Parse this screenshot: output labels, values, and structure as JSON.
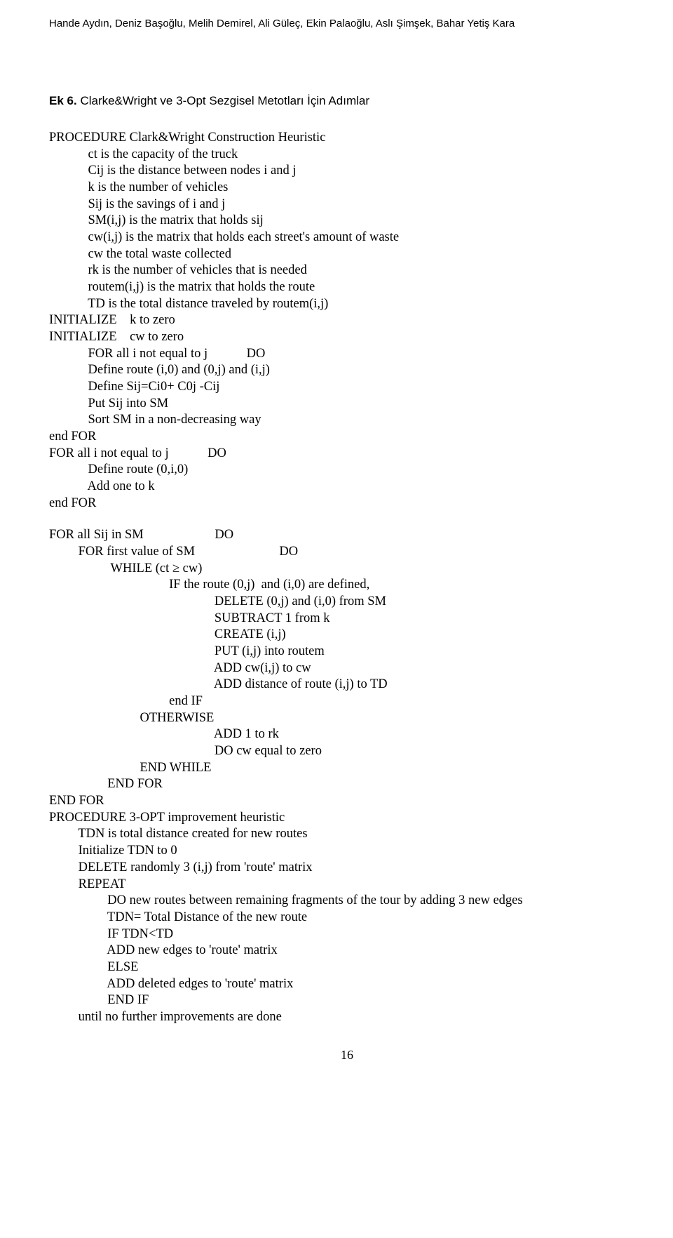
{
  "authors": "Hande Aydın, Deniz Başoğlu, Melih Demirel, Ali Güleç, Ekin Palaoğlu, Aslı Şimşek, Bahar Yetiş Kara",
  "section": {
    "ek": "Ek 6.",
    "title": "Clarke&Wright ve 3-Opt Sezgisel Metotları İçin Adımlar"
  },
  "code": {
    "block1": "PROCEDURE Clark&Wright Construction Heuristic\n            ct is the capacity of the truck\n            Cij is the distance between nodes i and j\n            k is the number of vehicles\n            Sij is the savings of i and j\n            SM(i,j) is the matrix that holds sij\n            cw(i,j) is the matrix that holds each street's amount of waste\n            cw the total waste collected\n            rk is the number of vehicles that is needed\n            routem(i,j) is the matrix that holds the route\n            TD is the total distance traveled by routem(i,j)\nINITIALIZE    k to zero\nINITIALIZE    cw to zero\n            FOR all i not equal to j            DO\n            Define route (i,0) and (0,j) and (i,j)\n            Define Sij=Ci0+ C0j -Cij\n            Put Sij into SM\n            Sort SM in a non-decreasing way\nend FOR\nFOR all i not equal to j            DO\n            Define route (0,i,0)\n            Add one to k\nend FOR",
    "block2": "FOR all Sij in SM                      DO\n         FOR first value of SM                          DO\n                   WHILE (ct ≥ cw)\n                                     IF the route (0,j)  and (i,0) are defined,\n                                                   DELETE (0,j) and (i,0) from SM\n                                                   SUBTRACT 1 from k\n                                                   CREATE (i,j)\n                                                   PUT (i,j) into routem\n                                                   ADD cw(i,j) to cw\n                                                   ADD distance of route (i,j) to TD\n                                     end IF\n                            OTHERWISE\n                                                   ADD 1 to rk\n                                                   DO cw equal to zero\n                            END WHILE\n                  END FOR\nEND FOR\nPROCEDURE 3-OPT improvement heuristic\n         TDN is total distance created for new routes\n         Initialize TDN to 0\n         DELETE randomly 3 (i,j) from 'route' matrix\n         REPEAT\n                  DO new routes between remaining fragments of the tour by adding 3 new edges\n                  TDN= Total Distance of the new route\n                  IF TDN<TD\n                  ADD new edges to 'route' matrix\n                  ELSE\n                  ADD deleted edges to 'route' matrix\n                  END IF\n         until no further improvements are done"
  },
  "page_number": "16"
}
